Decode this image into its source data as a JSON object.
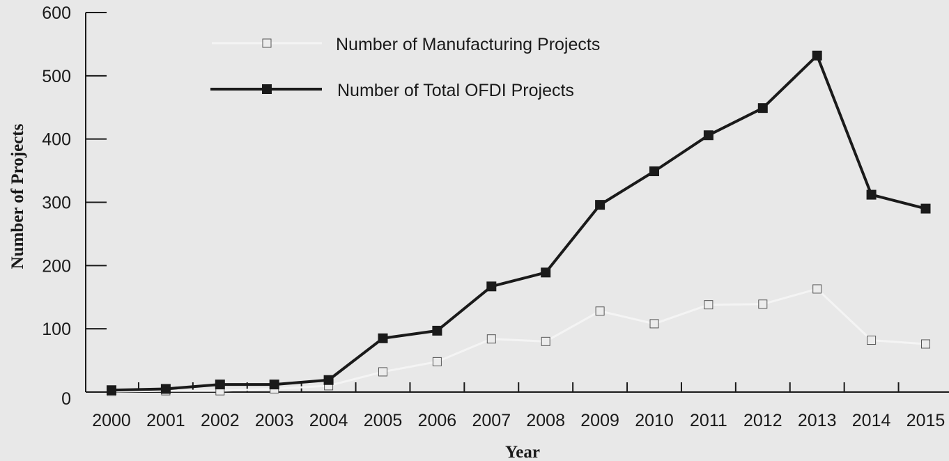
{
  "chart_data": {
    "type": "line",
    "xlabel": "Year",
    "ylabel": "Number of Projects",
    "ylim": [
      0,
      600
    ],
    "yticks": [
      0,
      100,
      200,
      300,
      400,
      500,
      600
    ],
    "categories": [
      "2000",
      "2001",
      "2002",
      "2003",
      "2004",
      "2005",
      "2006",
      "2007",
      "2008",
      "2009",
      "2010",
      "2011",
      "2012",
      "2013",
      "2014",
      "2015"
    ],
    "legend_position": "top-left",
    "series": [
      {
        "name": "Number of Manufacturing Projects",
        "color": "#f4f4f4",
        "marker": "open-square",
        "values": [
          1,
          2,
          2,
          5,
          10,
          32,
          48,
          84,
          80,
          128,
          108,
          138,
          139,
          163,
          82,
          76
        ]
      },
      {
        "name": "Number of Total OFDI Projects",
        "color": "#1a1a1a",
        "marker": "filled-square",
        "values": [
          3,
          5,
          12,
          12,
          19,
          85,
          97,
          167,
          189,
          296,
          349,
          406,
          449,
          532,
          312,
          290
        ]
      }
    ]
  }
}
